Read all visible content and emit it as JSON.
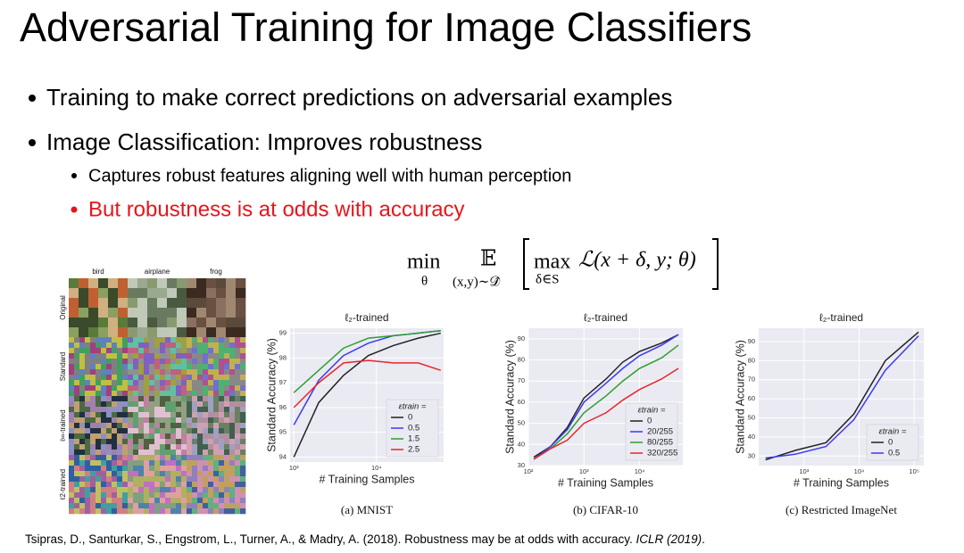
{
  "slide": {
    "title": "Adversarial Training for Image Classifiers",
    "bullets": [
      "Training to make correct predictions on adversarial examples",
      "Image Classification: Improves robustness"
    ],
    "sub_bullets": [
      "Captures robust features aligning well with human perception",
      "But robustness is at odds with accuracy"
    ],
    "formula": {
      "min": "min",
      "min_sub": "θ",
      "expect": "𝔼",
      "expect_sub": "(x,y)∼𝒟̂",
      "max": "max",
      "max_sub": "δ∈S",
      "body": "ℒ(x + δ, y; θ)"
    },
    "figure": {
      "columns": [
        "bird",
        "airplane",
        "frog"
      ],
      "rows": [
        "Original",
        "Standard",
        "ℓ∞-trained",
        "ℓ2-trained"
      ]
    },
    "citation": {
      "text": "Tsipras, D., Santurkar, S., Engstrom, L., Turner, A., & Madry, A. (2018). Robustness may be at odds with accuracy. ",
      "venue": "ICLR (2019)",
      "end": "."
    }
  },
  "chart_data": [
    {
      "type": "line",
      "title": "ℓ₂-trained",
      "xlabel": "# Training Samples",
      "ylabel": "Standard Accuracy (%)",
      "caption": "(a) MNIST",
      "xscale": "log",
      "xlim": [
        900,
        65000
      ],
      "xticks": [
        {
          "value": 1000,
          "label": "10³"
        },
        {
          "value": 10000,
          "label": "10⁴"
        }
      ],
      "ylim": [
        93.8,
        99.2
      ],
      "yticks": [
        94,
        95,
        96,
        97,
        98,
        99
      ],
      "grid": true,
      "legend": "lower right",
      "legend_title": "εtrain =",
      "x": [
        1000,
        2000,
        4000,
        8000,
        16000,
        32000,
        60000
      ],
      "series": [
        {
          "name": "0",
          "color": "#222222",
          "values": [
            94.0,
            96.2,
            97.3,
            98.1,
            98.5,
            98.8,
            99.0
          ]
        },
        {
          "name": "0.5",
          "color": "#3b3bf0",
          "values": [
            95.3,
            97.1,
            98.1,
            98.6,
            98.9,
            99.0,
            99.1
          ]
        },
        {
          "name": "1.5",
          "color": "#2ca02c",
          "values": [
            96.6,
            97.5,
            98.4,
            98.8,
            98.9,
            99.0,
            99.1
          ]
        },
        {
          "name": "2.5",
          "color": "#e8262a",
          "values": [
            96.0,
            97.0,
            97.8,
            97.9,
            97.8,
            97.8,
            97.5
          ]
        }
      ]
    },
    {
      "type": "line",
      "title": "ℓ₂-trained",
      "xlabel": "# Training Samples",
      "ylabel": "Standard Accuracy (%)",
      "caption": "(b) CIFAR-10",
      "xscale": "log",
      "xlim": [
        100,
        60000
      ],
      "xticks": [
        {
          "value": 100,
          "label": "10²"
        },
        {
          "value": 1000,
          "label": "10³"
        },
        {
          "value": 10000,
          "label": "10⁴"
        }
      ],
      "ylim": [
        30,
        95
      ],
      "yticks": [
        30,
        40,
        50,
        60,
        70,
        80,
        90
      ],
      "grid": true,
      "legend": "lower right",
      "legend_title": "εtrain =",
      "x": [
        125,
        250,
        500,
        1000,
        2500,
        5000,
        10000,
        25000,
        50000
      ],
      "series": [
        {
          "name": "0",
          "color": "#222222",
          "values": [
            34,
            39,
            48,
            62,
            71,
            79,
            84,
            88,
            92
          ]
        },
        {
          "name": "20/255",
          "color": "#3b3bf0",
          "values": [
            33,
            39,
            47,
            60,
            69,
            76,
            82,
            87,
            92
          ]
        },
        {
          "name": "80/255",
          "color": "#2ca02c",
          "values": [
            33,
            38,
            45,
            55,
            63,
            70,
            76,
            81,
            87
          ]
        },
        {
          "name": "320/255",
          "color": "#e8262a",
          "values": [
            33,
            38,
            42,
            50,
            55,
            61,
            66,
            71,
            76
          ]
        }
      ]
    },
    {
      "type": "line",
      "title": "ℓ₂-trained",
      "xlabel": "# Training Samples",
      "ylabel": "Standard Accuracy (%)",
      "caption": "(c) Restricted ImageNet",
      "xscale": "log",
      "xlim": [
        150,
        150000
      ],
      "xticks": [
        {
          "value": 1000,
          "label": "10³"
        },
        {
          "value": 10000,
          "label": "10⁴"
        },
        {
          "value": 100000,
          "label": "10⁵"
        }
      ],
      "ylim": [
        25,
        97
      ],
      "yticks": [
        30,
        40,
        50,
        60,
        70,
        80,
        90
      ],
      "grid": true,
      "legend": "lower right",
      "legend_title": "εtrain =",
      "x": [
        200,
        700,
        2500,
        8000,
        30000,
        120000
      ],
      "series": [
        {
          "name": "0",
          "color": "#222222",
          "values": [
            28,
            33,
            37,
            52,
            80,
            95
          ]
        },
        {
          "name": "0.5",
          "color": "#3b3bf0",
          "values": [
            29,
            31,
            35,
            49,
            75,
            93
          ]
        }
      ]
    }
  ]
}
